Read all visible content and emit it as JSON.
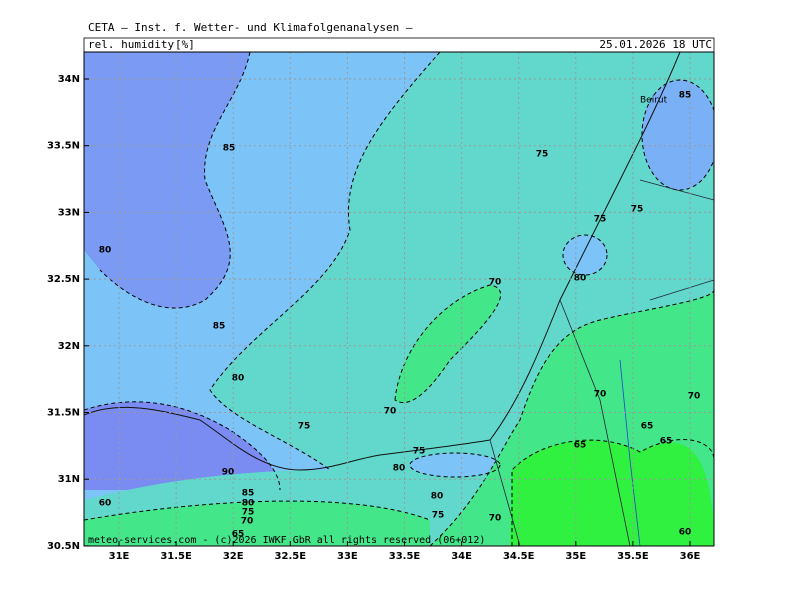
{
  "header": {
    "title": "CETA — Inst. f. Wetter- und Klimafolgenanalysen —",
    "variable": "rel. humidity",
    "unit": "[%]",
    "date": "25.01.2026 18 UTC"
  },
  "axes": {
    "x_labels": [
      "31E",
      "31.5E",
      "32E",
      "32.5E",
      "33E",
      "33.5E",
      "34E",
      "34.5E",
      "35E",
      "35.5E",
      "36E"
    ],
    "y_labels": [
      "34N",
      "33.5N",
      "33N",
      "32.5N",
      "32N",
      "31.5N",
      "31N",
      "30.5N"
    ]
  },
  "contour_labels": [
    85,
    80,
    85,
    80,
    75,
    70,
    75,
    80,
    80,
    75,
    70,
    70,
    75,
    75,
    75,
    80,
    85,
    70,
    65,
    65,
    65,
    70,
    60,
    90,
    85,
    80,
    75,
    70,
    65,
    60
  ],
  "places": [
    "Beirut"
  ],
  "footer": "meteo-services.com - (c)2026 IWKF GbR all rights reserved (06+012)"
}
